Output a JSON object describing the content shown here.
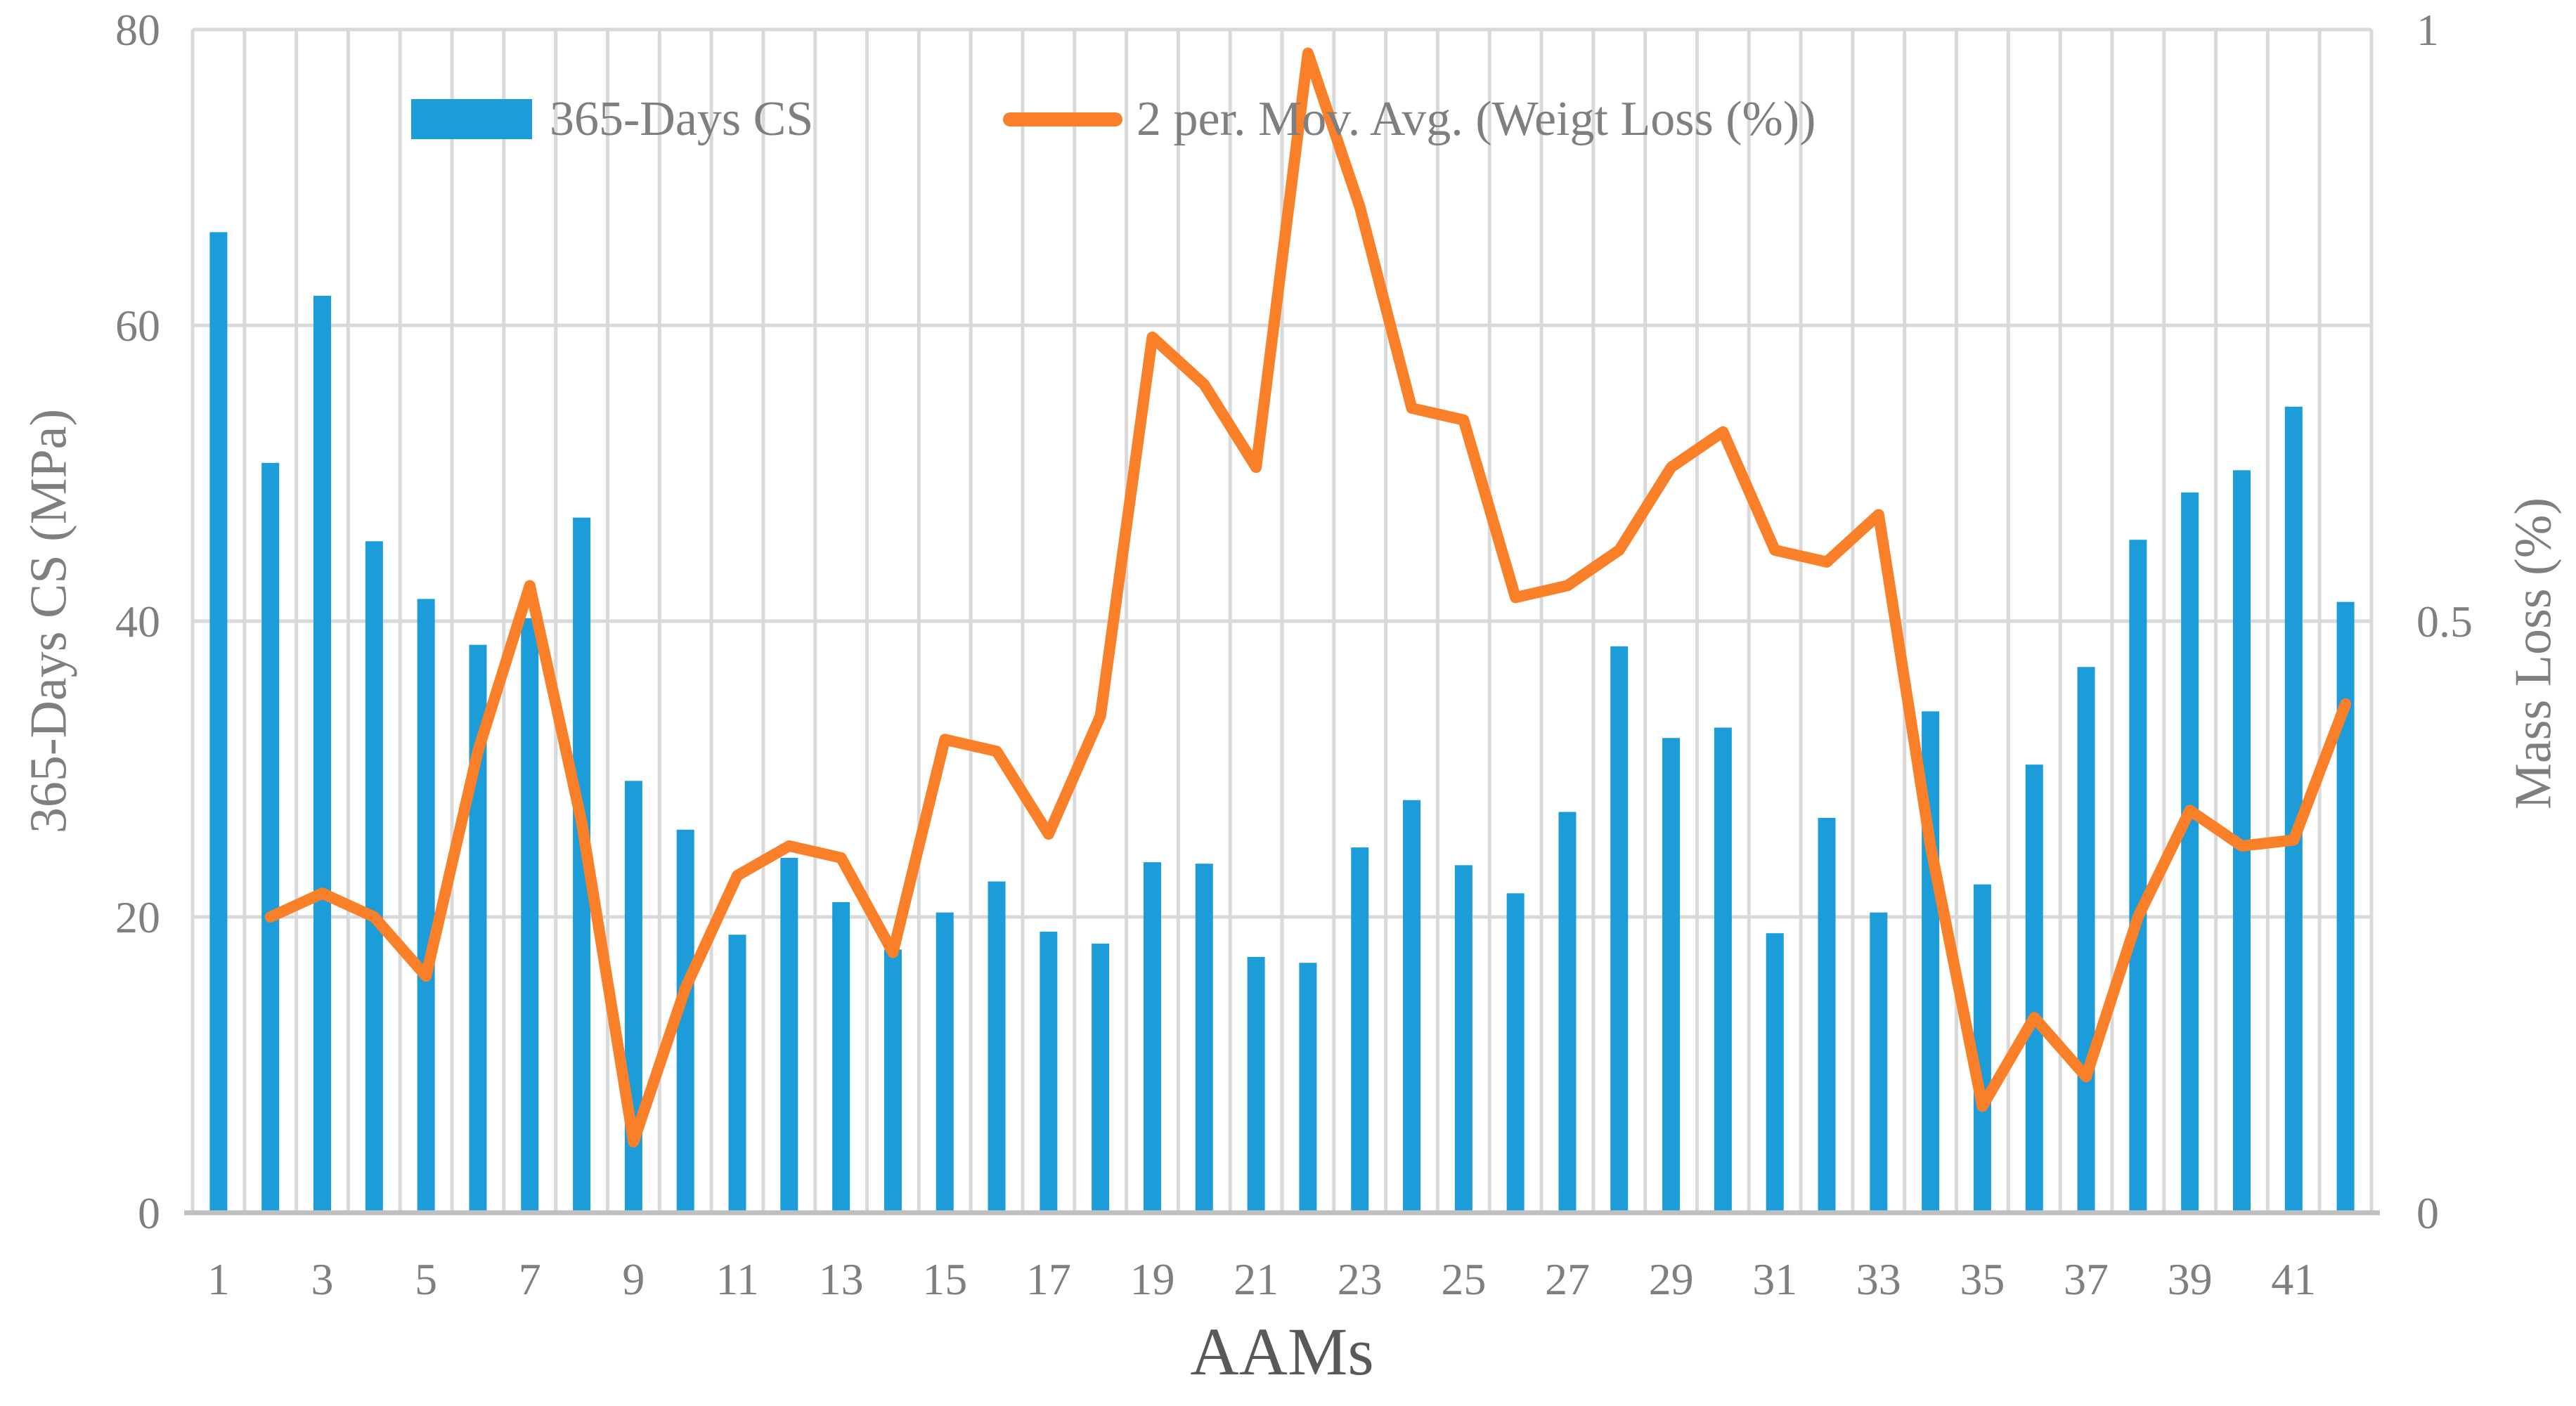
{
  "chart_data": {
    "type": "bar+line",
    "title": "",
    "xlabel": "AAMs",
    "ylabel_left": "365-Days CS (MPa)",
    "ylabel_right": "Mass Loss (%)",
    "categories": [
      1,
      2,
      3,
      4,
      5,
      6,
      7,
      8,
      9,
      10,
      11,
      12,
      13,
      14,
      15,
      16,
      17,
      18,
      19,
      20,
      21,
      22,
      23,
      24,
      25,
      26,
      27,
      28,
      29,
      30,
      31,
      32,
      33,
      34,
      35,
      36,
      37,
      38,
      39,
      40,
      41,
      42
    ],
    "x_tick_labels": [
      "1",
      "3",
      "5",
      "7",
      "9",
      "11",
      "13",
      "15",
      "17",
      "19",
      "21",
      "23",
      "25",
      "27",
      "29",
      "31",
      "33",
      "35",
      "37",
      "39",
      "41"
    ],
    "left_axis": {
      "min": 0,
      "max": 80,
      "tick_labels": [
        "0",
        "20",
        "40",
        "60",
        "80"
      ],
      "tick_values": [
        0,
        20,
        40,
        60,
        80
      ]
    },
    "right_axis": {
      "min": 0,
      "max": 1,
      "tick_labels": [
        "0",
        "0.5",
        "1"
      ],
      "tick_values": [
        0,
        0.5,
        1
      ]
    },
    "grid": "both",
    "legend_position": "top",
    "series": [
      {
        "name": "365-Days CS",
        "type": "bar",
        "axis": "left",
        "color": "#1C9CD9",
        "values": [
          66.3,
          50.7,
          62.0,
          45.4,
          41.5,
          38.4,
          40.2,
          47.0,
          29.2,
          25.9,
          18.8,
          24.0,
          21.0,
          17.8,
          20.3,
          22.4,
          19.0,
          18.2,
          23.7,
          23.6,
          17.3,
          16.9,
          24.7,
          27.9,
          23.5,
          21.6,
          27.1,
          38.3,
          32.1,
          32.8,
          18.9,
          26.7,
          20.3,
          33.9,
          22.2,
          30.3,
          36.9,
          45.5,
          48.7,
          50.2,
          54.5,
          41.3
        ]
      },
      {
        "name": "2 per. Mov. Avg. (Weigt Loss (%))",
        "type": "line",
        "axis": "right",
        "color": "#F97F28",
        "values": [
          null,
          0.25,
          0.27,
          0.25,
          0.2,
          0.39,
          0.53,
          0.33,
          0.06,
          0.19,
          0.285,
          0.31,
          0.3,
          0.22,
          0.4,
          0.39,
          0.32,
          0.42,
          0.74,
          0.7,
          0.63,
          0.98,
          0.85,
          0.68,
          0.67,
          0.52,
          0.53,
          0.56,
          0.63,
          0.66,
          0.56,
          0.55,
          0.59,
          0.31,
          0.09,
          0.165,
          0.115,
          0.25,
          0.34,
          0.31,
          0.315,
          0.43
        ]
      }
    ]
  },
  "legend": {
    "bar_label": "365-Days CS",
    "line_label": "2 per. Mov. Avg. (Weigt Loss (%))"
  },
  "axes": {
    "x_title": "AAMs",
    "left_title": "365-Days CS (MPa)",
    "right_title": "Mass Loss (%)"
  },
  "colors": {
    "bar": "#1C9CD9",
    "line": "#F97F28",
    "grid": "#D9D9D9",
    "axis_line": "#BFBFBF",
    "tick_text": "#7F7F7F",
    "axis_title_text": "#7F7F7F",
    "x_title_text": "#595959",
    "background": "#FFFFFF"
  }
}
